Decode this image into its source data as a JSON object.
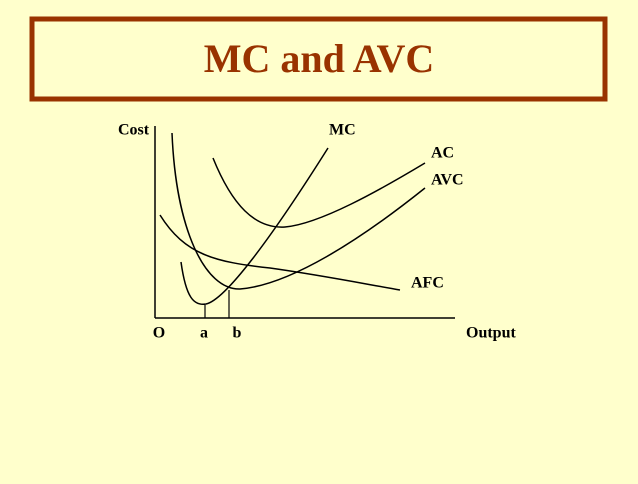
{
  "header": {
    "title": "MC and AVC"
  },
  "diagram": {
    "y_axis_label": "Cost",
    "x_axis_label": "Output",
    "origin_label": "O",
    "x_marks": [
      "a",
      "b"
    ],
    "curve_labels": {
      "mc": "MC",
      "ac": "AC",
      "avc": "AVC",
      "afc": "AFC"
    }
  }
}
